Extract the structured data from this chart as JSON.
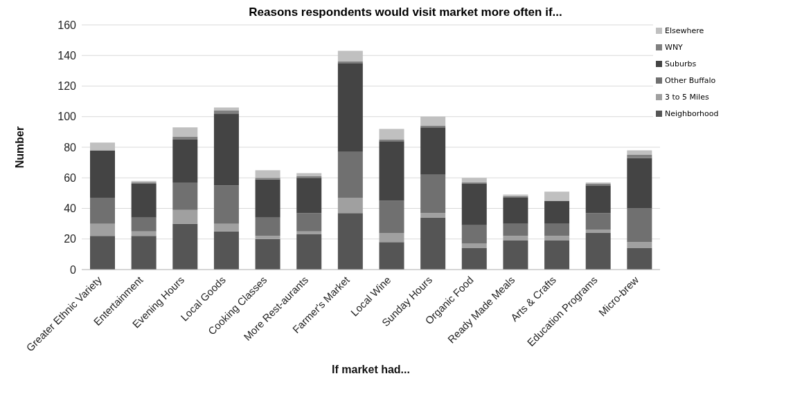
{
  "chart_data": {
    "type": "bar",
    "title": "Reasons respondents would visit market more often if...",
    "xlabel": "If market had...",
    "ylabel": "Number",
    "stacked": true,
    "grid": "y",
    "legend": "top right",
    "categories": [
      "Greater Ethnic Variety",
      "Entertainment",
      "Evening Hours",
      "Local Goods",
      "Cooking Classes",
      "More Rest-aurants",
      "Farmer's Market",
      "Local Wine",
      "Sunday Hours",
      "Organic Food",
      "Ready Made Meals",
      "Arts & Crafts",
      "Education Programs",
      "Micro-brew"
    ],
    "ylim": [
      0,
      160
    ],
    "yticks": [
      0,
      20,
      40,
      60,
      80,
      100,
      120,
      140,
      160
    ],
    "series": [
      {
        "name": "Neighborhood",
        "color": "#555555",
        "values": [
          22,
          22,
          30,
          25,
          20,
          23,
          37,
          18,
          34,
          14,
          19,
          19,
          24,
          14
        ]
      },
      {
        "name": "3 to 5 Miles",
        "color": "#a0a0a0",
        "values": [
          8,
          3,
          9,
          5,
          2,
          2,
          10,
          6,
          3,
          3,
          3,
          3,
          2,
          4
        ]
      },
      {
        "name": "Other Buffalo",
        "color": "#707070",
        "values": [
          17,
          9,
          18,
          25,
          12,
          12,
          30,
          21,
          25,
          12,
          8,
          8,
          11,
          22
        ]
      },
      {
        "name": "Suburbs",
        "color": "#444444",
        "values": [
          31,
          22,
          28,
          47,
          25,
          23,
          58,
          39,
          31,
          27,
          17,
          15,
          18,
          33
        ]
      },
      {
        "name": "WNY",
        "color": "#808080",
        "values": [
          0,
          1,
          2,
          2,
          1,
          1,
          1,
          1,
          1,
          1,
          1,
          0,
          1,
          2
        ]
      },
      {
        "name": "Elsewhere",
        "color": "#c0c0c0",
        "values": [
          5,
          1,
          6,
          2,
          5,
          2,
          7,
          7,
          6,
          3,
          1,
          6,
          1,
          3
        ]
      }
    ]
  }
}
